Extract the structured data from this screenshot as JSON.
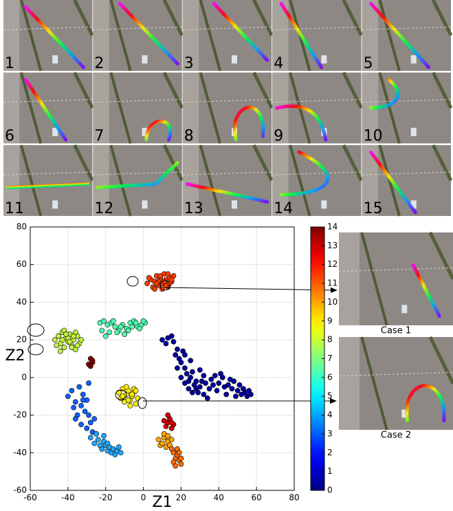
{
  "panels": [
    {
      "label": "1"
    },
    {
      "label": "2"
    },
    {
      "label": "3"
    },
    {
      "label": "4"
    },
    {
      "label": "5"
    },
    {
      "label": "6"
    },
    {
      "label": "7"
    },
    {
      "label": "8"
    },
    {
      "label": "9"
    },
    {
      "label": "10"
    },
    {
      "label": "11"
    },
    {
      "label": "12"
    },
    {
      "label": "13"
    },
    {
      "label": "14"
    },
    {
      "label": "15"
    }
  ],
  "cases": [
    "Case 1",
    "Case 2"
  ],
  "chart_data": {
    "type": "scatter",
    "xlabel": "Z1",
    "ylabel": "Z2",
    "xlim": [
      -60,
      80
    ],
    "ylim": [
      -60,
      80
    ],
    "xticks": [
      -60,
      -40,
      -20,
      0,
      20,
      40,
      60,
      80
    ],
    "yticks": [
      -60,
      -40,
      -20,
      0,
      20,
      40,
      60,
      80
    ],
    "grid": true,
    "colorbar": {
      "colormap": "jet",
      "lim": [
        0,
        14
      ],
      "ticks": [
        0,
        1,
        2,
        3,
        4,
        5,
        6,
        7,
        8,
        9,
        10,
        11,
        12,
        13,
        14
      ]
    },
    "series": [
      {
        "color": "#ff3d00",
        "x": [
          2,
          4,
          5,
          6,
          7,
          8,
          9,
          10,
          11,
          12,
          13,
          14,
          15,
          16,
          6,
          8,
          10,
          12,
          14,
          3,
          7,
          11,
          9,
          13,
          15
        ],
        "values": [
          50,
          52,
          48,
          51,
          54,
          49,
          53,
          50,
          55,
          52,
          48,
          53,
          51,
          54,
          47,
          51,
          47,
          49,
          50,
          53,
          50,
          51,
          54,
          55,
          52
        ]
      },
      {
        "color": "#c0f040",
        "x": [
          -47,
          -45,
          -44,
          -43,
          -42,
          -41,
          -40,
          -39,
          -38,
          -37,
          -36,
          -35,
          -34,
          -33,
          -44,
          -42,
          -40,
          -38,
          -36,
          -46,
          -41,
          -39,
          -35,
          -43,
          -37
        ],
        "values": [
          20,
          22,
          18,
          24,
          16,
          21,
          19,
          23,
          17,
          20,
          15,
          22,
          18,
          20,
          14,
          25,
          21,
          16,
          24,
          17,
          23,
          19,
          17,
          20,
          22
        ]
      },
      {
        "color": "#50ffb0",
        "x": [
          -23,
          -21,
          -19,
          -17,
          -15,
          -13,
          -11,
          -9,
          -7,
          -5,
          -3,
          -1,
          1,
          -22,
          -18,
          -14,
          -12,
          -10,
          -8,
          -6,
          -4,
          -16,
          -20,
          -2,
          0
        ],
        "values": [
          29,
          30,
          28,
          29,
          27,
          25,
          28,
          26,
          29,
          30,
          27,
          28,
          29,
          25,
          24,
          24,
          27,
          23,
          25,
          27,
          29,
          30,
          22,
          26,
          30
        ]
      },
      {
        "color": "#800000",
        "x": [
          -28,
          -27,
          -29,
          -28,
          -27
        ],
        "values": [
          10,
          8,
          7,
          6,
          9
        ]
      },
      {
        "color": "#00009c",
        "x": [
          10,
          12,
          13,
          15,
          16,
          18,
          17,
          19,
          20,
          21,
          22,
          23,
          24,
          25,
          26,
          27,
          28,
          29,
          30,
          31,
          32,
          33,
          34,
          35,
          36,
          37,
          38,
          39,
          40,
          41,
          42,
          43,
          44,
          45,
          46,
          47,
          48,
          49,
          50,
          51,
          52,
          53,
          54,
          55,
          56,
          57,
          18,
          20,
          22,
          24,
          26,
          28,
          30,
          32,
          22,
          25
        ],
        "values": [
          20,
          18,
          21,
          22,
          19,
          15,
          12,
          10,
          8,
          14,
          5,
          2,
          -2,
          0,
          3,
          -4,
          -6,
          -8,
          -5,
          -2,
          -9,
          -3,
          -11,
          -6,
          -1,
          -4,
          1,
          -7,
          -3,
          2,
          0,
          -5,
          -9,
          -4,
          -1,
          -6,
          -2,
          -10,
          -7,
          -4,
          -9,
          -6,
          -8,
          -10,
          -7,
          -9,
          5,
          0,
          -3,
          -6,
          -8,
          -2,
          4,
          1,
          12,
          9
        ]
      },
      {
        "color": "#ffee00",
        "x": [
          -13,
          -12,
          -11,
          -10,
          -9,
          -8,
          -7,
          -6,
          -5,
          -4,
          -3,
          -11,
          -9,
          -7,
          -5,
          -10,
          -8,
          -6,
          -4
        ],
        "values": [
          -8,
          -11,
          -6,
          -13,
          -9,
          -7,
          -12,
          -10,
          -8,
          -14,
          -11,
          -10,
          -5,
          -15,
          -6,
          -13,
          -12,
          -9,
          -7
        ]
      },
      {
        "color": "#1060ff",
        "x": [
          -40,
          -38,
          -36,
          -34,
          -33,
          -32,
          -31,
          -30,
          -29,
          -28,
          -35,
          -37,
          -33,
          -30,
          -27,
          -26,
          -25,
          -32,
          -29,
          -36
        ],
        "values": [
          -10,
          -7,
          -13,
          -5,
          -15,
          -9,
          -18,
          -12,
          -20,
          -24,
          -20,
          -16,
          -25,
          -27,
          -29,
          -22,
          -30,
          -12,
          -3,
          -22
        ]
      },
      {
        "color": "#20a8ff",
        "x": [
          -28,
          -26,
          -24,
          -22,
          -21,
          -20,
          -19,
          -18,
          -17,
          -16,
          -15,
          -14,
          -13,
          -12,
          -25,
          -23,
          -21,
          -19
        ],
        "values": [
          -32,
          -35,
          -33,
          -38,
          -34,
          -36,
          -39,
          -37,
          -40,
          -38,
          -41,
          -39,
          -37,
          -40,
          -30,
          -36,
          -31,
          -35
        ]
      },
      {
        "color": "#d00000",
        "x": [
          11,
          12,
          13,
          14,
          15,
          16,
          13,
          15
        ],
        "values": [
          -23,
          -26,
          -24,
          -22,
          -27,
          -25,
          -20,
          -24
        ]
      },
      {
        "color": "#ffa400",
        "x": [
          8,
          9,
          10,
          11,
          12,
          13,
          14,
          15,
          11,
          13
        ],
        "values": [
          -33,
          -36,
          -35,
          -32,
          -37,
          -34,
          -36,
          -33,
          -30,
          -31
        ]
      },
      {
        "color": "#ff6a00",
        "x": [
          15,
          16,
          17,
          18,
          19,
          20,
          16,
          18,
          17,
          19,
          20
        ],
        "values": [
          -38,
          -40,
          -43,
          -41,
          -44,
          -46,
          -45,
          -38,
          -47,
          -40,
          -43
        ]
      }
    ]
  }
}
